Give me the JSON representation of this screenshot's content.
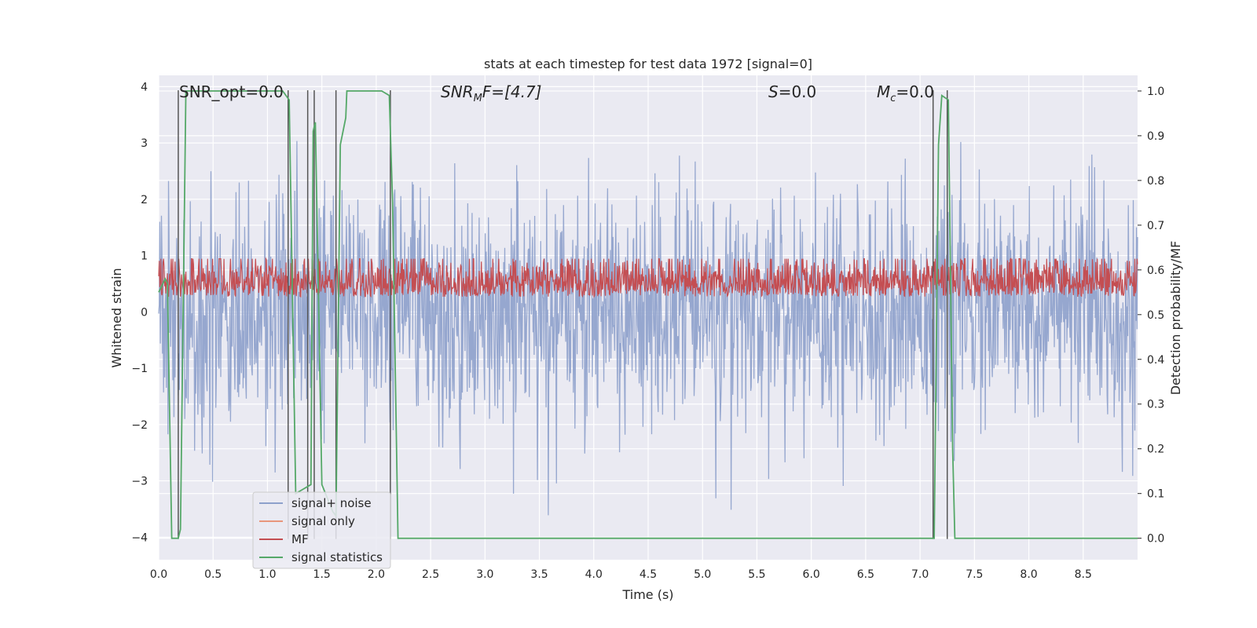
{
  "chart_data": {
    "type": "line",
    "title": "stats at each timestep for test data 1972 [signal=0]",
    "xlabel": "Time (s)",
    "ylabel": "Whitened strain",
    "y2label": "Detection probability/MF",
    "xlim": [
      0,
      9
    ],
    "ylim": [
      -4.4,
      4.2
    ],
    "y2lim": [
      -0.048,
      1.035
    ],
    "xticks": [
      "0.0",
      "0.5",
      "1.0",
      "1.5",
      "2.0",
      "2.5",
      "3.0",
      "3.5",
      "4.0",
      "4.5",
      "5.0",
      "5.5",
      "6.0",
      "6.5",
      "7.0",
      "7.5",
      "8.0",
      "8.5"
    ],
    "yticks": [
      "−4",
      "−3",
      "−2",
      "−1",
      "0",
      "1",
      "2",
      "3",
      "4"
    ],
    "y2ticks": [
      "0.0",
      "0.1",
      "0.2",
      "0.3",
      "0.4",
      "0.5",
      "0.6",
      "0.7",
      "0.8",
      "0.9",
      "1.0"
    ],
    "grid": true,
    "legend": {
      "placement": "lower-left",
      "entries": [
        "signal+ noise",
        "signal only",
        "MF",
        "signal statistics"
      ]
    },
    "annotations": [
      {
        "text": "SNR_opt=0.0",
        "italic": false
      },
      {
        "text": "SNR",
        "sub": "M",
        "rest": "F=[4.7]",
        "italic": true
      },
      {
        "text": "S",
        "rest": "=0.0",
        "italic": true
      },
      {
        "text": "M",
        "sub": "c",
        "rest": "=0.0",
        "italic": true
      }
    ],
    "series": [
      {
        "name": "signal+ noise",
        "color": "#8da0cb",
        "kind": "noise",
        "sigma": 1.0,
        "range": [
          -3.85,
          3.85
        ],
        "samples": 1800
      },
      {
        "name": "signal only",
        "color": "#e8967c",
        "kind": "empty"
      },
      {
        "name": "MF",
        "color": "#c44e52",
        "kind": "noise_positive",
        "axis": "right",
        "mean": 0.54,
        "spread": 0.045,
        "range": [
          0.5,
          0.625
        ],
        "samples": 1800
      },
      {
        "name": "signal statistics",
        "color": "#55a868",
        "axis": "right",
        "x": [
          0.0,
          0.06,
          0.08,
          0.12,
          0.18,
          0.2,
          0.25,
          1.0,
          1.14,
          1.2,
          1.26,
          1.4,
          1.42,
          1.44,
          1.5,
          1.6,
          1.63,
          1.67,
          1.72,
          1.73,
          2.05,
          2.12,
          2.15,
          2.2,
          7.1,
          7.13,
          7.17,
          7.2,
          7.26,
          7.3,
          7.32,
          9.0
        ],
        "y": [
          0.55,
          0.58,
          0.57,
          0.0,
          0.0,
          0.02,
          1.0,
          1.0,
          1.0,
          0.98,
          0.1,
          0.12,
          0.91,
          0.93,
          0.12,
          0.06,
          0.05,
          0.88,
          0.94,
          1.0,
          1.0,
          0.99,
          0.75,
          0.0,
          0.0,
          0.0,
          0.88,
          0.99,
          0.98,
          0.2,
          0.0,
          0.0
        ]
      }
    ],
    "vlines": [
      0.18,
      1.19,
      1.37,
      1.43,
      1.63,
      2.13,
      7.12,
      7.25
    ]
  }
}
